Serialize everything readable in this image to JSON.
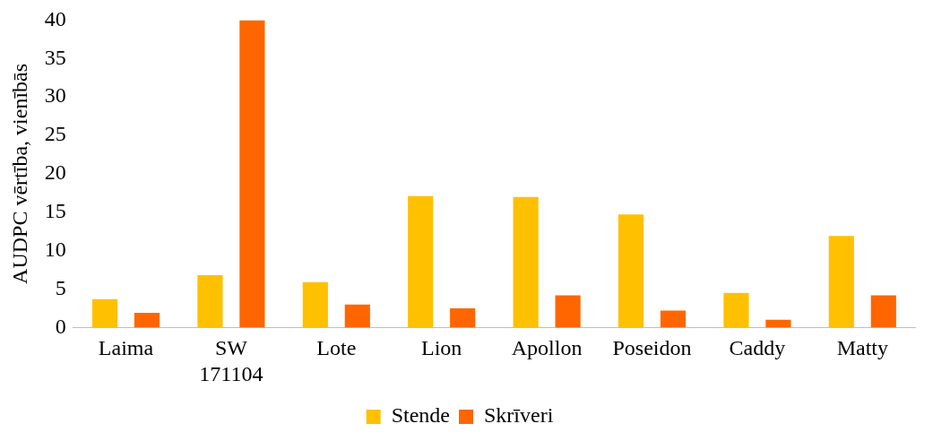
{
  "chart_data": {
    "type": "bar",
    "ylabel": "AUDPC vērtība, vienībās",
    "categories": [
      "Laima",
      "SW 171104",
      "Lote",
      "Lion",
      "Apollon",
      "Poseidon",
      "Caddy",
      "Matty"
    ],
    "series": [
      {
        "name": "Stende",
        "color": "#ffc000",
        "values": [
          3.7,
          6.8,
          5.9,
          17.1,
          17.0,
          14.7,
          4.5,
          11.9
        ]
      },
      {
        "name": "Skrīveri",
        "color": "#ff6600",
        "values": [
          1.9,
          40,
          3.0,
          2.5,
          4.2,
          2.2,
          1.0,
          4.2
        ]
      }
    ],
    "ylim": [
      0,
      40
    ],
    "yticks": [
      0,
      5,
      10,
      15,
      20,
      25,
      30,
      35,
      40
    ],
    "grid": false,
    "legend": "bottom"
  }
}
